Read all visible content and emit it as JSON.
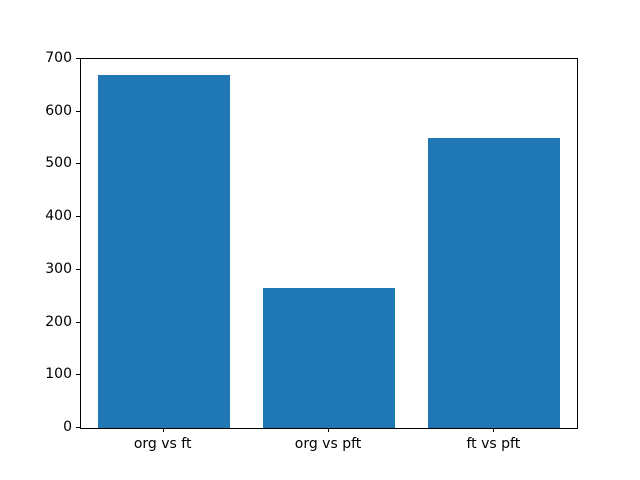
{
  "chart_data": {
    "type": "bar",
    "title": "",
    "xlabel": "",
    "ylabel": "",
    "categories": [
      "org vs ft",
      "org vs pft",
      "ft vs pft"
    ],
    "values": [
      670,
      265,
      550
    ],
    "ylim": [
      0,
      700
    ],
    "yticks": [
      0,
      100,
      200,
      300,
      400,
      500,
      600,
      700
    ],
    "bar_color": "#1f77b4",
    "bar_width_fraction": 0.8,
    "grid": false,
    "legend": "none",
    "background_color": "#ffffff",
    "spine_color": "#000000",
    "tick_label_color": "#000000"
  }
}
